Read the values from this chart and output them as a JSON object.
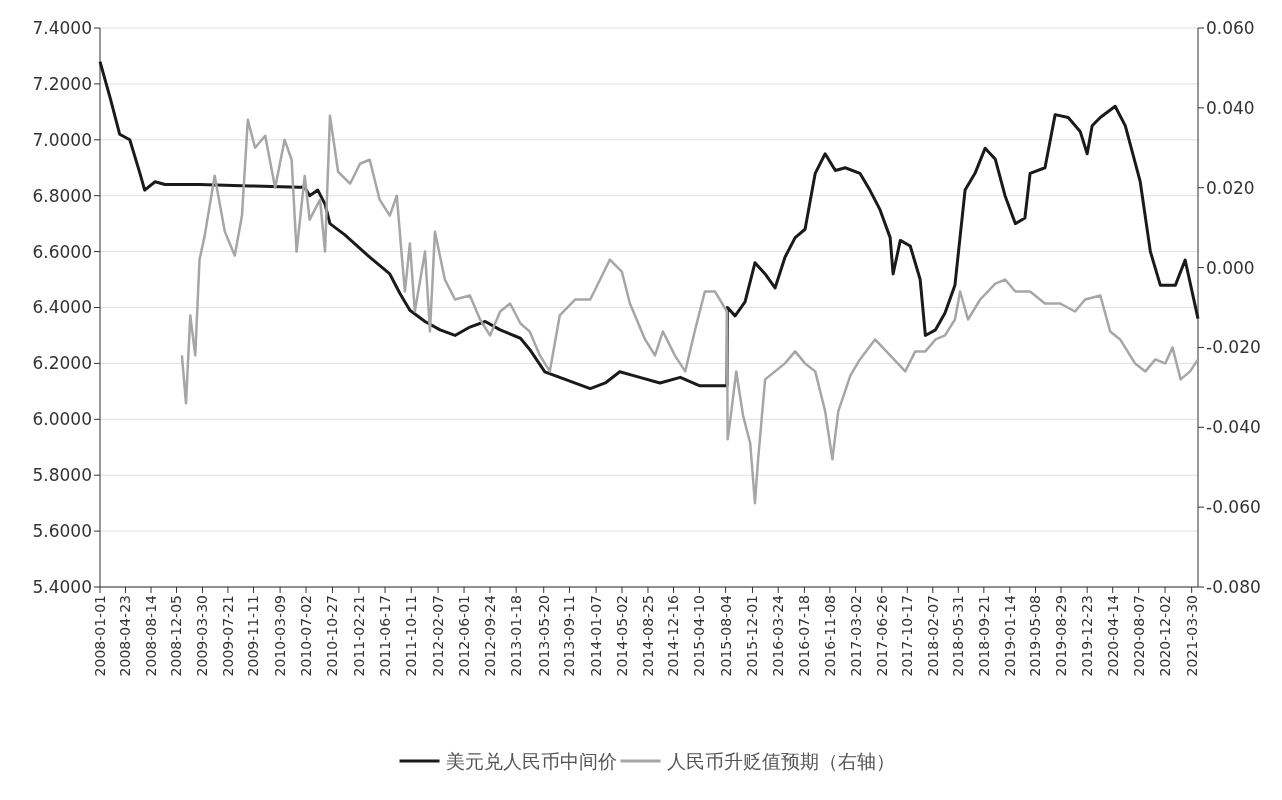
{
  "chart_data": {
    "type": "line",
    "grid": "y",
    "legend": "bottom",
    "xlim": [
      "2008-01-01",
      "2021-04-27"
    ],
    "xticks": [
      "2008-01-01",
      "2008-04-23",
      "2008-08-14",
      "2008-12-05",
      "2009-03-30",
      "2009-07-21",
      "2009-11-11",
      "2010-03-09",
      "2010-07-02",
      "2010-10-27",
      "2011-02-21",
      "2011-06-17",
      "2011-10-11",
      "2012-02-07",
      "2012-06-01",
      "2012-09-24",
      "2013-01-18",
      "2013-05-20",
      "2013-09-11",
      "2014-01-07",
      "2014-05-02",
      "2014-08-25",
      "2014-12-16",
      "2015-04-10",
      "2015-08-04",
      "2015-12-01",
      "2016-03-24",
      "2016-07-18",
      "2016-11-08",
      "2017-03-02",
      "2017-06-26",
      "2017-10-17",
      "2018-02-07",
      "2018-05-31",
      "2018-09-21",
      "2019-01-14",
      "2019-05-08",
      "2019-08-29",
      "2019-12-23",
      "2020-04-14",
      "2020-08-07",
      "2020-12-02",
      "2021-03-30"
    ],
    "ylim": [
      5.4,
      7.4
    ],
    "yticks": [
      {
        "value": 5.4,
        "label": "5.4000"
      },
      {
        "value": 5.6,
        "label": "5.6000"
      },
      {
        "value": 5.8,
        "label": "5.8000"
      },
      {
        "value": 6.0,
        "label": "6.0000"
      },
      {
        "value": 6.2,
        "label": "6.2000"
      },
      {
        "value": 6.4,
        "label": "6.4000"
      },
      {
        "value": 6.6,
        "label": "6.6000"
      },
      {
        "value": 6.8,
        "label": "6.8000"
      },
      {
        "value": 7.0,
        "label": "7.0000"
      },
      {
        "value": 7.2,
        "label": "7.2000"
      },
      {
        "value": 7.4,
        "label": "7.4000"
      }
    ],
    "y2lim": [
      -0.08,
      0.06
    ],
    "y2ticks": [
      {
        "value": -0.08,
        "label": "-0.080"
      },
      {
        "value": -0.06,
        "label": "-0.060"
      },
      {
        "value": -0.04,
        "label": "-0.040"
      },
      {
        "value": -0.02,
        "label": "-0.020"
      },
      {
        "value": 0,
        "label": "0.000"
      },
      {
        "value": 0.02,
        "label": "0.020"
      },
      {
        "value": 0.04,
        "label": "0.040"
      },
      {
        "value": 0.06,
        "label": "0.060"
      }
    ],
    "series": [
      {
        "name": "美元兑人民币中间价",
        "color": "#1a1a1a",
        "x": [
          "2008-01-01",
          "2008-02-15",
          "2008-03-28",
          "2008-05-12",
          "2008-06-26",
          "2008-07-17",
          "2008-09-01",
          "2008-10-15",
          "2009-03-17",
          "2009-10-26",
          "2010-06-04",
          "2010-06-26",
          "2010-07-18",
          "2010-08-23",
          "2010-09-24",
          "2010-10-16",
          "2010-12-21",
          "2011-04-10",
          "2011-07-08",
          "2011-08-22",
          "2011-10-05",
          "2011-12-11",
          "2012-02-16",
          "2012-04-22",
          "2012-06-27",
          "2012-09-03",
          "2012-11-08",
          "2013-02-06",
          "2013-03-19",
          "2013-05-25",
          "2013-07-30",
          "2013-12-12",
          "2014-02-17",
          "2014-04-22",
          "2014-07-20",
          "2014-10-17",
          "2015-01-15",
          "2015-04-12",
          "2015-06-18",
          "2015-08-10",
          "2015-08-12",
          "2015-09-15",
          "2015-10-29",
          "2015-12-12",
          "2016-01-26",
          "2016-03-10",
          "2016-04-23",
          "2016-06-07",
          "2016-07-21",
          "2016-09-04",
          "2016-10-18",
          "2016-12-02",
          "2017-01-15",
          "2017-03-21",
          "2017-05-04",
          "2017-06-18",
          "2017-08-02",
          "2017-08-15",
          "2017-09-16",
          "2017-10-30",
          "2017-12-13",
          "2018-01-05",
          "2018-02-19",
          "2018-04-02",
          "2018-05-16",
          "2018-06-30",
          "2018-08-13",
          "2018-09-27",
          "2018-11-11",
          "2018-12-24",
          "2019-02-08",
          "2019-03-22",
          "2019-04-14",
          "2019-06-19",
          "2019-08-03",
          "2019-09-30",
          "2019-11-22",
          "2019-12-23",
          "2020-01-14",
          "2020-02-19",
          "2020-04-25",
          "2020-06-09",
          "2020-08-14",
          "2020-09-28",
          "2020-11-11",
          "2021-01-17",
          "2021-03-01",
          "2021-04-27"
        ],
        "values": [
          7.28,
          7.15,
          7.02,
          7.0,
          6.88,
          6.82,
          6.85,
          6.84,
          6.84,
          6.835,
          6.83,
          6.83,
          6.8,
          6.82,
          6.77,
          6.7,
          6.66,
          6.58,
          6.52,
          6.45,
          6.39,
          6.35,
          6.32,
          6.3,
          6.33,
          6.35,
          6.32,
          6.29,
          6.25,
          6.17,
          6.15,
          6.11,
          6.13,
          6.17,
          6.15,
          6.13,
          6.15,
          6.12,
          6.12,
          6.12,
          6.4,
          6.37,
          6.42,
          6.56,
          6.52,
          6.47,
          6.58,
          6.65,
          6.68,
          6.88,
          6.95,
          6.89,
          6.9,
          6.88,
          6.82,
          6.75,
          6.65,
          6.52,
          6.64,
          6.62,
          6.5,
          6.3,
          6.32,
          6.38,
          6.48,
          6.82,
          6.88,
          6.97,
          6.93,
          6.8,
          6.7,
          6.72,
          6.88,
          6.9,
          7.09,
          7.08,
          7.03,
          6.95,
          7.05,
          7.08,
          7.12,
          7.05,
          6.85,
          6.6,
          6.48,
          6.48,
          6.57,
          6.36
        ]
      },
      {
        "name": "人民币升贬值预期（右轴）",
        "color": "#a6a6a6",
        "axis": "y2",
        "x": [
          "2008-12-29",
          "2009-01-16",
          "2009-02-04",
          "2009-02-26",
          "2009-03-17",
          "2009-04-09",
          "2009-05-23",
          "2009-07-07",
          "2009-08-20",
          "2009-09-21",
          "2009-10-17",
          "2009-11-18",
          "2010-01-02",
          "2010-02-15",
          "2010-03-29",
          "2010-04-29",
          "2010-05-21",
          "2010-06-26",
          "2010-07-18",
          "2010-09-02",
          "2010-09-24",
          "2010-10-16",
          "2010-11-21",
          "2011-01-13",
          "2011-02-26",
          "2011-04-10",
          "2011-05-24",
          "2011-07-08",
          "2011-08-08",
          "2011-08-30",
          "2011-09-13",
          "2011-10-05",
          "2011-10-27",
          "2011-12-11",
          "2012-01-02",
          "2012-01-24",
          "2012-03-08",
          "2012-04-22",
          "2012-06-27",
          "2012-08-11",
          "2012-09-24",
          "2012-11-08",
          "2012-12-22",
          "2013-02-06",
          "2013-03-19",
          "2013-05-03",
          "2013-06-16",
          "2013-07-30",
          "2013-10-06",
          "2013-12-12",
          "2014-01-25",
          "2014-03-09",
          "2014-05-01",
          "2014-06-06",
          "2014-08-12",
          "2014-09-25",
          "2014-10-30",
          "2014-12-22",
          "2015-02-06",
          "2015-03-20",
          "2015-05-04",
          "2015-06-18",
          "2015-08-10",
          "2015-08-13",
          "2015-08-25",
          "2015-09-20",
          "2015-10-20",
          "2015-11-21",
          "2015-12-12",
          "2015-12-26",
          "2016-01-26",
          "2016-03-10",
          "2016-04-23",
          "2016-06-07",
          "2016-07-21",
          "2016-09-04",
          "2016-10-18",
          "2016-11-19",
          "2016-12-15",
          "2017-02-07",
          "2017-03-21",
          "2017-05-27",
          "2017-08-02",
          "2017-10-08",
          "2017-11-21",
          "2018-01-05",
          "2018-02-19",
          "2018-04-02",
          "2018-05-16",
          "2018-06-08",
          "2018-07-13",
          "2018-09-05",
          "2018-11-11",
          "2018-12-24",
          "2019-02-08",
          "2019-04-14",
          "2019-06-19",
          "2019-08-25",
          "2019-10-30",
          "2019-12-14",
          "2020-02-19",
          "2020-04-03",
          "2020-05-17",
          "2020-07-22",
          "2020-09-06",
          "2020-10-20",
          "2020-12-03",
          "2021-01-04",
          "2021-02-09",
          "2021-03-23",
          "2021-04-27"
        ],
        "values": [
          -0.022,
          -0.034,
          -0.012,
          -0.022,
          0.002,
          0.008,
          0.023,
          0.009,
          0.003,
          0.013,
          0.037,
          0.03,
          0.033,
          0.02,
          0.032,
          0.027,
          0.004,
          0.023,
          0.012,
          0.017,
          0.004,
          0.038,
          0.024,
          0.021,
          0.026,
          0.027,
          0.017,
          0.013,
          0.018,
          0.003,
          -0.006,
          0.006,
          -0.011,
          0.004,
          -0.016,
          0.009,
          -0.003,
          -0.008,
          -0.007,
          -0.013,
          -0.017,
          -0.011,
          -0.009,
          -0.014,
          -0.016,
          -0.022,
          -0.026,
          -0.012,
          -0.008,
          -0.008,
          -0.003,
          0.002,
          -0.001,
          -0.009,
          -0.018,
          -0.022,
          -0.016,
          -0.022,
          -0.026,
          -0.016,
          -0.006,
          -0.006,
          -0.011,
          -0.043,
          -0.038,
          -0.026,
          -0.037,
          -0.044,
          -0.059,
          -0.048,
          -0.028,
          -0.026,
          -0.024,
          -0.021,
          -0.024,
          -0.026,
          -0.036,
          -0.048,
          -0.036,
          -0.027,
          -0.023,
          -0.018,
          -0.022,
          -0.026,
          -0.021,
          -0.021,
          -0.018,
          -0.017,
          -0.013,
          -0.006,
          -0.013,
          -0.008,
          -0.004,
          -0.003,
          -0.006,
          -0.006,
          -0.009,
          -0.009,
          -0.011,
          -0.008,
          -0.007,
          -0.016,
          -0.018,
          -0.024,
          -0.026,
          -0.023,
          -0.024,
          -0.02,
          -0.028,
          -0.026,
          -0.023
        ]
      }
    ]
  }
}
